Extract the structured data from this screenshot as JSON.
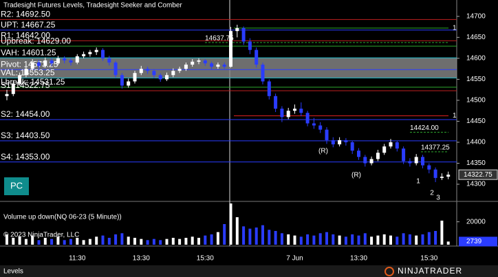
{
  "chart_data": {
    "type": "candlestick",
    "title": "Tradesight Futures Levels, Tradesight Seeker and Comber",
    "categories": [
      null,
      null,
      null,
      null,
      null,
      null,
      null,
      null,
      null,
      null,
      null,
      "11:30",
      null,
      null,
      null,
      null,
      null,
      null,
      null,
      null,
      null,
      "13:30",
      null,
      null,
      null,
      null,
      null,
      null,
      null,
      null,
      null,
      "15:30",
      null,
      null,
      null,
      null,
      null,
      null,
      null,
      null,
      null,
      null,
      null,
      null,
      null,
      "7 Jun",
      null,
      null,
      null,
      null,
      null,
      null,
      null,
      null,
      null,
      "13:30",
      null,
      null,
      null,
      null,
      null,
      null,
      null,
      null,
      null,
      null,
      "15:30",
      null,
      null,
      null
    ],
    "open": [
      14510,
      14515,
      14540,
      14560,
      14575,
      14590,
      14582,
      14595,
      14588,
      14600,
      14595,
      14590,
      14605,
      14610,
      14615,
      14620,
      14600,
      14590,
      14560,
      14535,
      14545,
      14565,
      14575,
      14570,
      14560,
      14550,
      14560,
      14570,
      14575,
      14585,
      14592,
      14595,
      14588,
      14580,
      14585,
      14580,
      14665,
      14672,
      14640,
      14620,
      14585,
      14545,
      14510,
      14480,
      14460,
      14475,
      14480,
      14470,
      14445,
      14440,
      14430,
      14405,
      14395,
      14405,
      14400,
      14380,
      14365,
      14350,
      14360,
      14375,
      14390,
      14400,
      14385,
      14355,
      14350,
      14365,
      14345,
      14335,
      14315,
      14318
    ],
    "high": [
      14525,
      14548,
      14566,
      14582,
      14598,
      14596,
      14602,
      14600,
      14606,
      14605,
      14600,
      14610,
      14616,
      14620,
      14626,
      14624,
      14606,
      14594,
      14565,
      14552,
      14570,
      14582,
      14580,
      14574,
      14564,
      14566,
      14576,
      14580,
      14590,
      14598,
      14600,
      14598,
      14592,
      14590,
      14590,
      14675,
      14680,
      14676,
      14648,
      14626,
      14590,
      14550,
      14516,
      14486,
      14482,
      14490,
      14495,
      14475,
      14458,
      14448,
      14436,
      14412,
      14412,
      14410,
      14404,
      14386,
      14370,
      14366,
      14382,
      14396,
      14408,
      14404,
      14390,
      14362,
      14372,
      14370,
      14350,
      14340,
      14326,
      14330
    ],
    "low": [
      14500,
      14510,
      14535,
      14555,
      14570,
      14575,
      14578,
      14582,
      14584,
      14588,
      14583,
      14586,
      14600,
      14604,
      14608,
      14594,
      14583,
      14554,
      14528,
      14530,
      14540,
      14560,
      14563,
      14553,
      14544,
      14546,
      14555,
      14565,
      14570,
      14580,
      14586,
      14582,
      14574,
      14575,
      14575,
      14578,
      14650,
      14632,
      14610,
      14578,
      14538,
      14502,
      14472,
      14448,
      14455,
      14468,
      14462,
      14438,
      14432,
      14422,
      14396,
      14388,
      14390,
      14392,
      14372,
      14358,
      14342,
      14345,
      14355,
      14370,
      14385,
      14378,
      14348,
      14342,
      14345,
      14338,
      14326,
      14305,
      14310,
      14312
    ],
    "close": [
      14515,
      14540,
      14560,
      14575,
      14590,
      14582,
      14595,
      14588,
      14600,
      14595,
      14590,
      14605,
      14610,
      14615,
      14620,
      14600,
      14590,
      14560,
      14535,
      14545,
      14565,
      14575,
      14570,
      14560,
      14550,
      14560,
      14570,
      14575,
      14585,
      14592,
      14595,
      14588,
      14580,
      14585,
      14580,
      14665,
      14672,
      14640,
      14620,
      14585,
      14545,
      14510,
      14480,
      14460,
      14475,
      14480,
      14470,
      14445,
      14440,
      14430,
      14405,
      14395,
      14405,
      14400,
      14380,
      14365,
      14350,
      14360,
      14375,
      14390,
      14400,
      14385,
      14355,
      14350,
      14365,
      14345,
      14335,
      14315,
      14318,
      14322.75
    ],
    "up_color": "#ffffff",
    "down_color": "#2a3cff",
    "ylim": [
      14264,
      14739
    ],
    "yticks": [
      14300,
      14350,
      14400,
      14450,
      14500,
      14550,
      14600,
      14650,
      14700
    ],
    "levels": [
      {
        "label": "R2: 14692.50",
        "value": 14692.5,
        "color": "#c02020"
      },
      {
        "label": "UPT: 14667.25",
        "value": 14667.25,
        "color": "#2a3cff"
      },
      {
        "label": "R1: 14642.00",
        "value": 14642,
        "color": "#c02020"
      },
      {
        "label": "Upbreak: 14629.00",
        "value": 14629,
        "color": "#2ea82e"
      },
      {
        "label": "VAH: 14601.25",
        "value": 14601.25,
        "color": "#20c0d0"
      },
      {
        "label": "Pivot: 14573.25",
        "value": 14573.25,
        "color": "#2a3cff"
      },
      {
        "label": "VAL: 14553.25",
        "value": 14553.25,
        "color": "#20c0d0"
      },
      {
        "label": "Lbreak: 14531.25",
        "value": 14531.25,
        "color": "#2ea82e"
      },
      {
        "label": "S1: 14522.75",
        "value": 14522.75,
        "color": "#c02020"
      },
      {
        "label": "S2: 14454.00",
        "value": 14454,
        "color": "#2a3cff"
      },
      {
        "label": "S3: 14403.50",
        "value": 14403.5,
        "color": "#2a3cff"
      },
      {
        "label": "S4: 14353.00",
        "value": 14353,
        "color": "#2a3cff"
      }
    ],
    "band_color": "#8a8a8a",
    "targets": [
      {
        "value": 14672,
        "label": "1",
        "color": "#2ea82e"
      },
      {
        "value": 14463,
        "label": "1",
        "color": "#e02020"
      }
    ],
    "annotations": [
      {
        "value": 14637.75,
        "label": "14637.75",
        "color": "#2ea82e"
      },
      {
        "value": 14424,
        "label": "14424.00",
        "color": "#2ea82e"
      },
      {
        "value": 14377.25,
        "label": "14377.25",
        "color": "#2ea82e"
      }
    ],
    "signals": [
      {
        "text": "(R)",
        "color": "#e02020"
      },
      {
        "text": "(R)",
        "color": "#e02020"
      },
      {
        "text": "1",
        "color": "#20c0ff"
      },
      {
        "text": "2",
        "color": "#20c0ff"
      },
      {
        "text": "3",
        "color": "#20c0ff"
      }
    ],
    "volume": {
      "title": "Volume up down(NQ 06-23 (5 Minute))",
      "values": [
        9000,
        6000,
        7000,
        5000,
        8000,
        4000,
        6000,
        5000,
        7000,
        4000,
        5000,
        6000,
        4000,
        5000,
        7000,
        8000,
        6000,
        9000,
        10000,
        7000,
        6000,
        5000,
        4000,
        5000,
        4000,
        5000,
        6000,
        5000,
        6000,
        7000,
        6000,
        8000,
        9000,
        11000,
        18000,
        36000,
        24000,
        16000,
        14000,
        15000,
        17000,
        13000,
        12000,
        10000,
        9000,
        8000,
        7000,
        9000,
        8000,
        10000,
        11000,
        9000,
        8000,
        7000,
        9000,
        8000,
        10000,
        7000,
        8000,
        9000,
        8000,
        7000,
        10000,
        9000,
        8000,
        9000,
        11000,
        12000,
        21000,
        2739
      ],
      "ylim": [
        0,
        36000
      ],
      "yticks": [
        20000
      ]
    },
    "copyright": "© 2023 NinjaTrader, LLC",
    "button": "PC",
    "tab": "Levels",
    "brand": "NINJATRADER"
  }
}
